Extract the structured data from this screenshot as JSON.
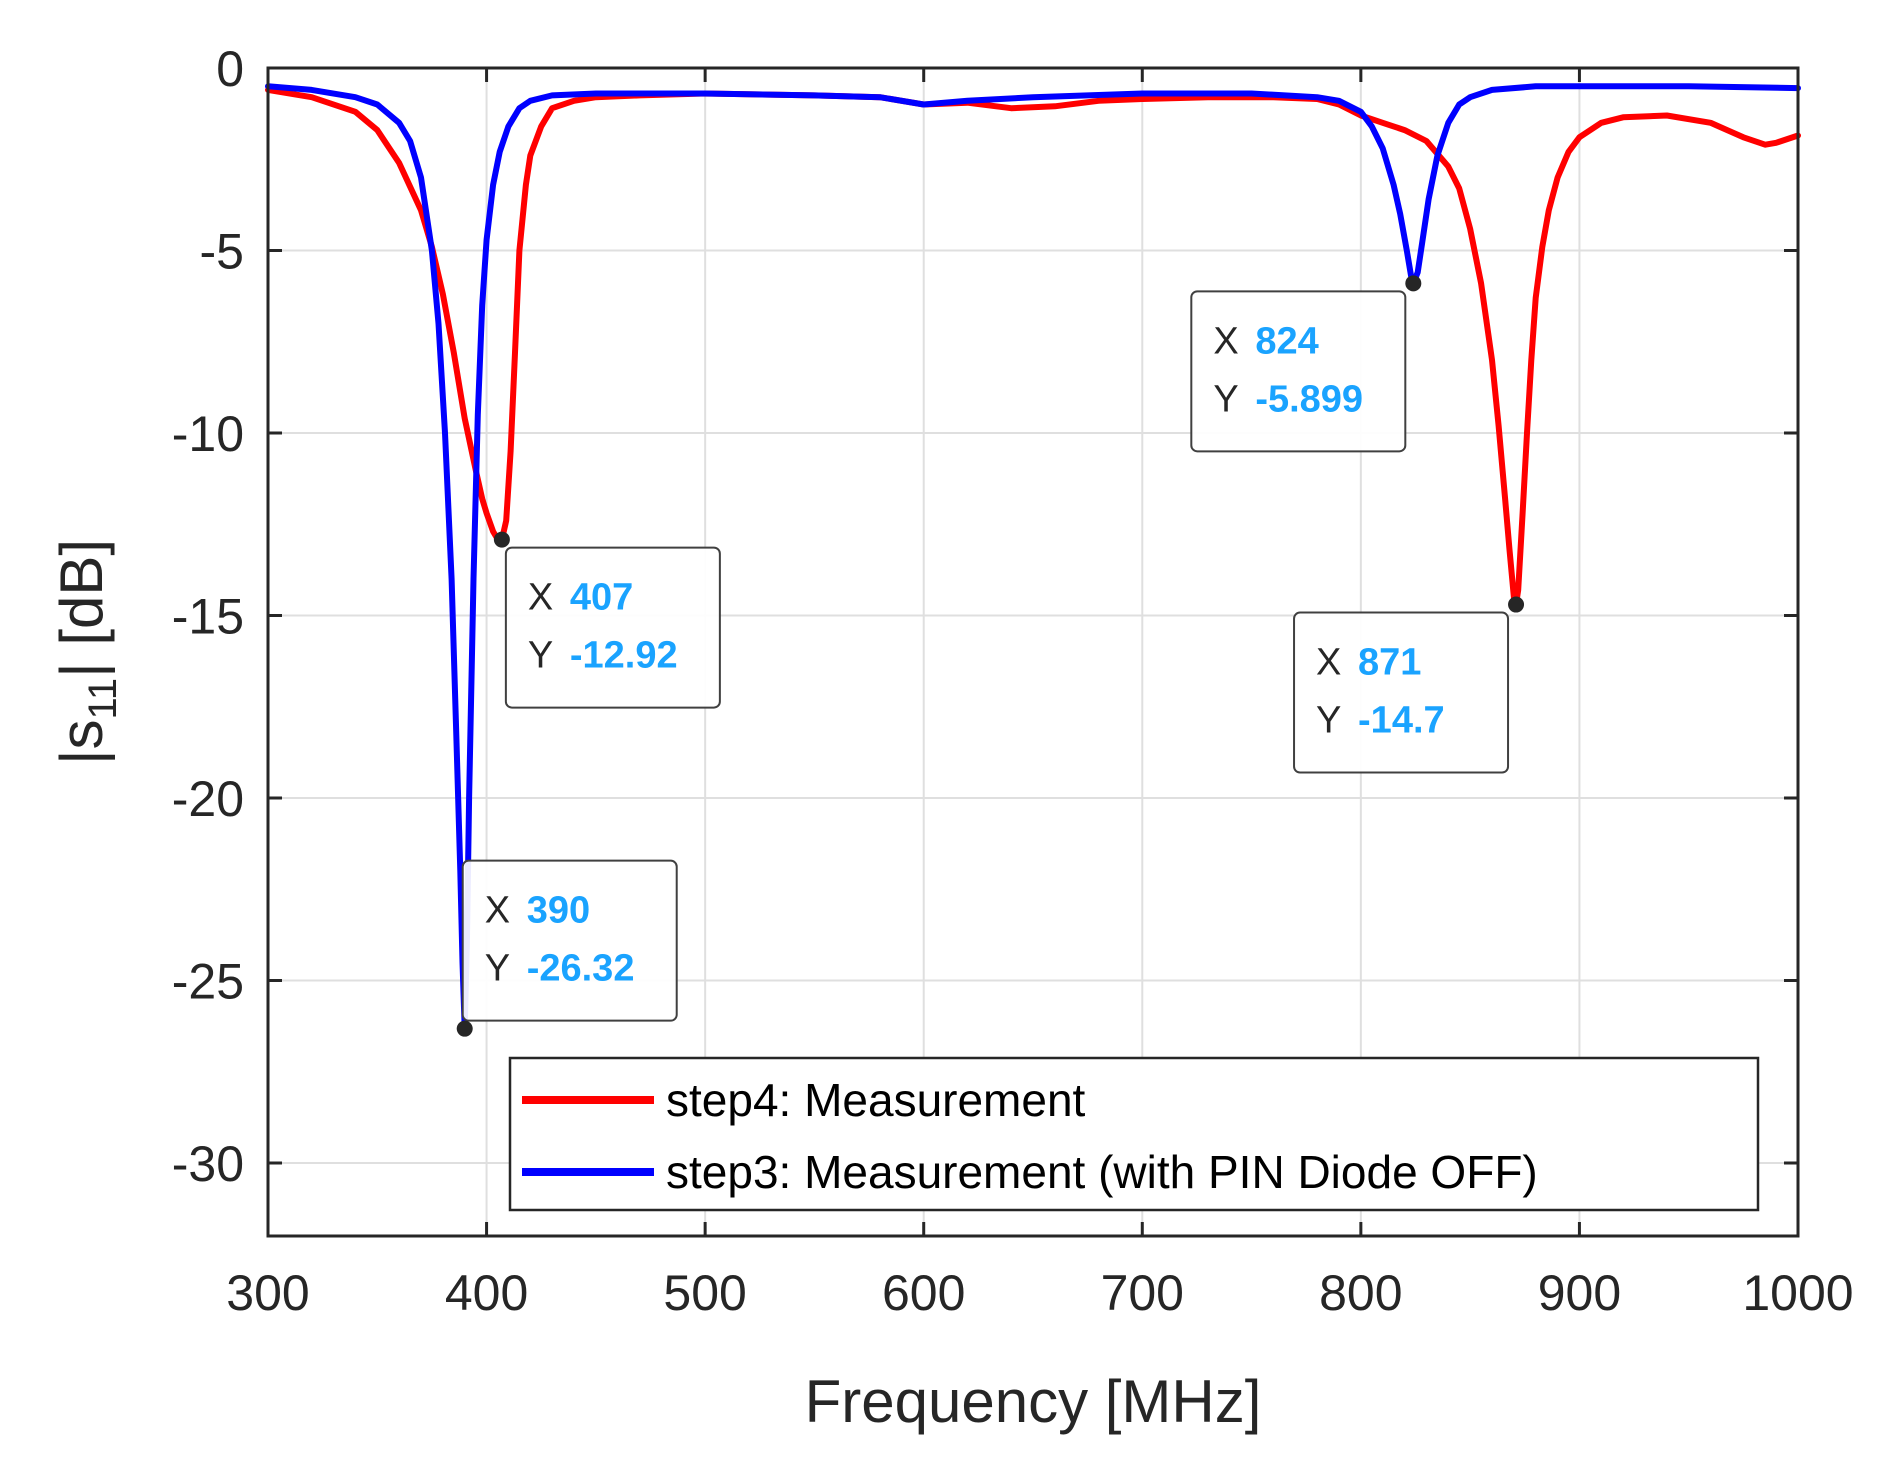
{
  "chart_data": {
    "type": "line",
    "title": "",
    "xlabel": "Frequency [MHz]",
    "ylabel_main": "|s",
    "ylabel_sub": "11",
    "ylabel_tail": "| [dB]",
    "xlim": [
      300,
      1000
    ],
    "ylim": [
      -32,
      0
    ],
    "xticks": [
      300,
      400,
      500,
      600,
      700,
      800,
      900,
      1000
    ],
    "yticks": [
      0,
      -5,
      -10,
      -15,
      -20,
      -25,
      -30
    ],
    "grid": true,
    "legend_position": "bottom-right",
    "series": [
      {
        "name": "step4: Measurement",
        "color": "#ff0000",
        "x": [
          300,
          320,
          340,
          350,
          360,
          370,
          375,
          380,
          385,
          390,
          395,
          398,
          400,
          403,
          405,
          407,
          409,
          411,
          413,
          415,
          418,
          420,
          425,
          430,
          440,
          450,
          470,
          500,
          550,
          580,
          600,
          620,
          640,
          660,
          680,
          700,
          730,
          760,
          780,
          790,
          800,
          810,
          820,
          830,
          840,
          845,
          850,
          855,
          860,
          863,
          866,
          868,
          870,
          871,
          872,
          874,
          876,
          878,
          880,
          883,
          886,
          890,
          895,
          900,
          910,
          920,
          940,
          960,
          975,
          985,
          990,
          1000
        ],
        "y": [
          -0.6,
          -0.8,
          -1.2,
          -1.7,
          -2.6,
          -3.9,
          -4.9,
          -6.2,
          -7.8,
          -9.6,
          -11.0,
          -11.8,
          -12.2,
          -12.7,
          -12.9,
          -12.92,
          -12.4,
          -10.5,
          -7.8,
          -5.0,
          -3.2,
          -2.4,
          -1.6,
          -1.1,
          -0.9,
          -0.8,
          -0.75,
          -0.7,
          -0.75,
          -0.8,
          -1.0,
          -0.95,
          -1.1,
          -1.05,
          -0.9,
          -0.85,
          -0.8,
          -0.8,
          -0.85,
          -1.0,
          -1.3,
          -1.5,
          -1.7,
          -2.0,
          -2.7,
          -3.3,
          -4.4,
          -5.9,
          -8.0,
          -9.8,
          -11.8,
          -13.2,
          -14.5,
          -14.7,
          -14.3,
          -12.2,
          -10.0,
          -8.0,
          -6.3,
          -4.9,
          -3.9,
          -3.0,
          -2.3,
          -1.9,
          -1.5,
          -1.35,
          -1.3,
          -1.5,
          -1.9,
          -2.1,
          -2.05,
          -1.85
        ]
      },
      {
        "name": "step3: Measurement (with PIN Diode OFF)",
        "color": "#0000ff",
        "x": [
          300,
          320,
          340,
          350,
          360,
          365,
          370,
          375,
          378,
          381,
          384,
          386,
          388,
          389,
          390,
          391,
          392,
          394,
          396,
          398,
          400,
          403,
          406,
          410,
          415,
          420,
          430,
          450,
          500,
          550,
          580,
          600,
          620,
          650,
          700,
          750,
          780,
          790,
          800,
          805,
          810,
          815,
          818,
          821,
          823,
          824,
          826,
          828,
          831,
          835,
          840,
          845,
          850,
          860,
          880,
          900,
          950,
          1000
        ],
        "y": [
          -0.5,
          -0.6,
          -0.8,
          -1.0,
          -1.5,
          -2.0,
          -3.0,
          -5.0,
          -7.0,
          -10.0,
          -14.0,
          -18.0,
          -22.0,
          -24.5,
          -26.32,
          -24.0,
          -20.0,
          -14.0,
          -9.5,
          -6.5,
          -4.7,
          -3.2,
          -2.3,
          -1.6,
          -1.1,
          -0.9,
          -0.75,
          -0.7,
          -0.7,
          -0.75,
          -0.8,
          -1.0,
          -0.9,
          -0.8,
          -0.7,
          -0.7,
          -0.8,
          -0.9,
          -1.2,
          -1.6,
          -2.2,
          -3.2,
          -4.0,
          -5.0,
          -5.7,
          -5.899,
          -5.6,
          -4.8,
          -3.6,
          -2.4,
          -1.5,
          -1.0,
          -0.8,
          -0.6,
          -0.5,
          -0.5,
          -0.5,
          -0.55
        ]
      }
    ],
    "datatips": [
      {
        "x_key": "X",
        "y_key": "Y",
        "x_val": "407",
        "y_val": "-12.92",
        "px": 407,
        "py": -12.92,
        "side": "right-below"
      },
      {
        "x_key": "X",
        "y_key": "Y",
        "x_val": "390",
        "y_val": "-26.32",
        "px": 390,
        "py": -26.32,
        "side": "right-above"
      },
      {
        "x_key": "X",
        "y_key": "Y",
        "x_val": "824",
        "y_val": "-5.899",
        "px": 824,
        "py": -5.899,
        "side": "left-below"
      },
      {
        "x_key": "X",
        "y_key": "Y",
        "x_val": "871",
        "y_val": "-14.7",
        "px": 871,
        "py": -14.7,
        "side": "left-below"
      }
    ]
  }
}
